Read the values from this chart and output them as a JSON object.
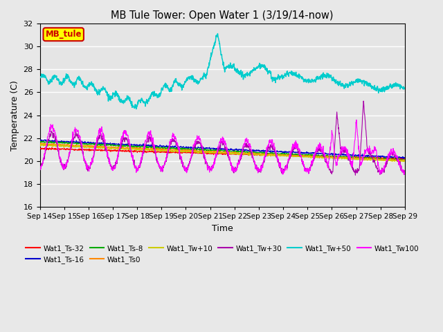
{
  "title": "MB Tule Tower: Open Water 1 (3/19/14-now)",
  "xlabel": "Time",
  "ylabel": "Temperature (C)",
  "ylim": [
    16,
    32
  ],
  "yticks": [
    16,
    18,
    20,
    22,
    24,
    26,
    28,
    30,
    32
  ],
  "xtick_labels": [
    "Sep 14",
    "Sep 15",
    "Sep 16",
    "Sep 17",
    "Sep 18",
    "Sep 19",
    "Sep 20",
    "Sep 21",
    "Sep 22",
    "Sep 23",
    "Sep 24",
    "Sep 25",
    "Sep 26",
    "Sep 27",
    "Sep 28",
    "Sep 29"
  ],
  "background_color": "#e8e8e8",
  "plot_bg_color": "#e5e5e5",
  "grid_color": "#ffffff",
  "series": {
    "Wat1_Ts-32": {
      "color": "#ff0000"
    },
    "Wat1_Ts-16": {
      "color": "#0000cc"
    },
    "Wat1_Ts-8": {
      "color": "#00aa00"
    },
    "Wat1_Ts0": {
      "color": "#ff8800"
    },
    "Wat1_Tw+10": {
      "color": "#cccc00"
    },
    "Wat1_Tw+30": {
      "color": "#aa00aa"
    },
    "Wat1_Tw+50": {
      "color": "#00cccc"
    },
    "Wat1_Tw100": {
      "color": "#ff00ff"
    }
  },
  "legend_label": "MB_tule",
  "legend_bg": "#ffff00",
  "legend_edge": "#cc0000"
}
